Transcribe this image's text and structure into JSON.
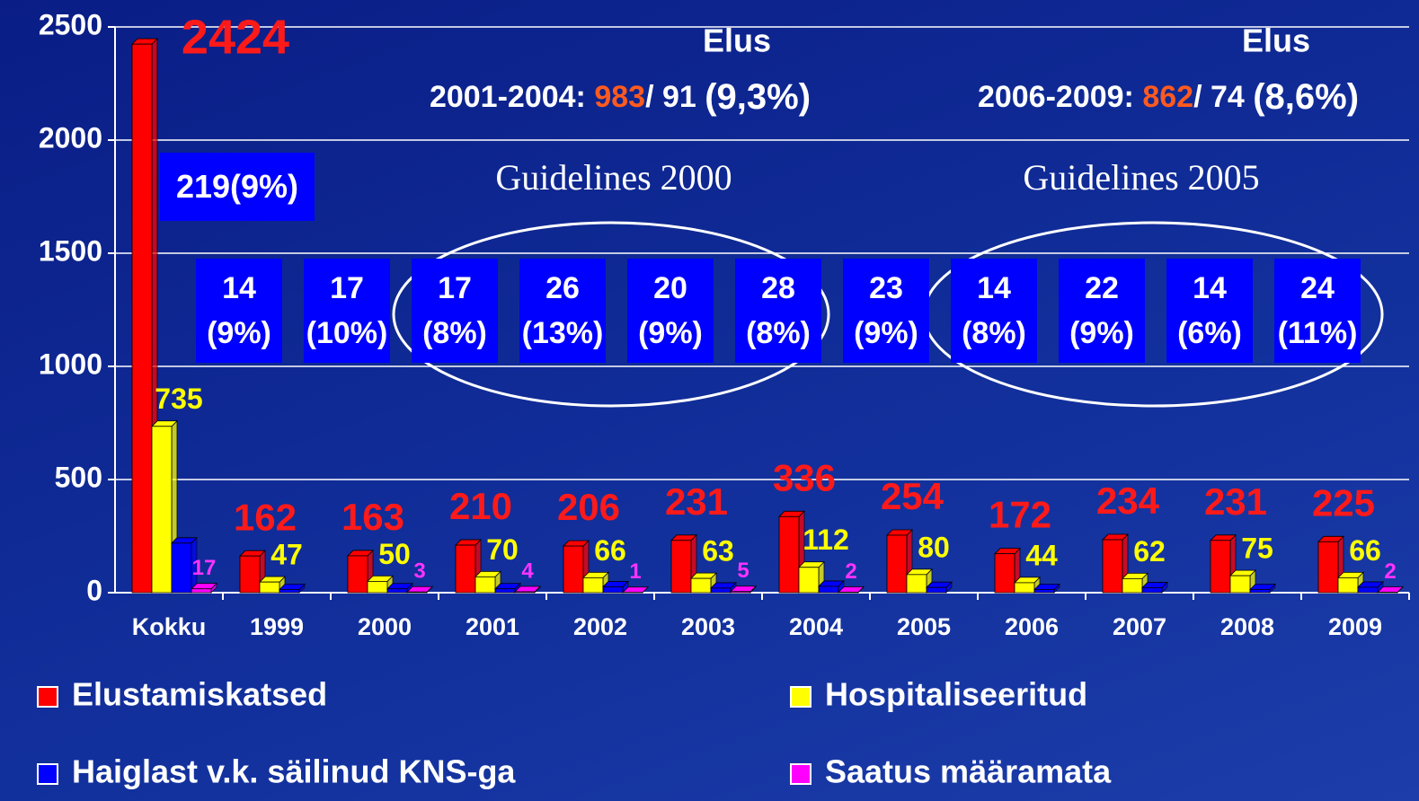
{
  "chart_data": {
    "type": "bar",
    "categories": [
      "Kokku",
      "1999",
      "2000",
      "2001",
      "2002",
      "2003",
      "2004",
      "2005",
      "2006",
      "2007",
      "2008",
      "2009"
    ],
    "series": [
      {
        "name": "Elustamiskatsed",
        "color": "#ff0000",
        "values": [
          2424,
          162,
          163,
          210,
          206,
          231,
          336,
          254,
          172,
          234,
          231,
          225
        ]
      },
      {
        "name": "Hospitaliseeritud",
        "color": "#ffff00",
        "values": [
          735,
          47,
          50,
          70,
          66,
          63,
          112,
          80,
          44,
          62,
          75,
          66
        ]
      },
      {
        "name": "Haiglast v.k. säilinud KNS-ga",
        "color": "#0000ff",
        "values": [
          219,
          14,
          17,
          17,
          26,
          20,
          28,
          23,
          14,
          22,
          14,
          24
        ],
        "value_labels": [
          "219(9%)",
          "14\n(9%)",
          "17\n(10%)",
          "17\n(8%)",
          "26\n(13%)",
          "20\n(9%)",
          "28\n(8%)",
          "23\n(9%)",
          "14\n(8%)",
          "22\n(9%)",
          "14\n(6%)",
          "24\n(11%)"
        ]
      },
      {
        "name": "Saatus määramata",
        "color": "#ff00ff",
        "values": [
          17,
          null,
          3,
          4,
          1,
          5,
          2,
          null,
          null,
          null,
          null,
          2
        ]
      }
    ],
    "ylim": [
      0,
      2500
    ],
    "yticks": [
      0,
      500,
      1000,
      1500,
      2000,
      2500
    ],
    "grid": true,
    "legend": "bottom",
    "annotations": [
      {
        "heading": "Elus",
        "period": "2001-2004: ",
        "attempts": "983",
        "survivors": "/ 91 ",
        "share": "(9,3%)"
      },
      {
        "heading": "Elus",
        "period": "2006-2009: ",
        "attempts": "862",
        "survivors": "/ 74 ",
        "share": "(8,6%)"
      }
    ],
    "guidelines": [
      "Guidelines 2000",
      "Guidelines 2005"
    ]
  }
}
